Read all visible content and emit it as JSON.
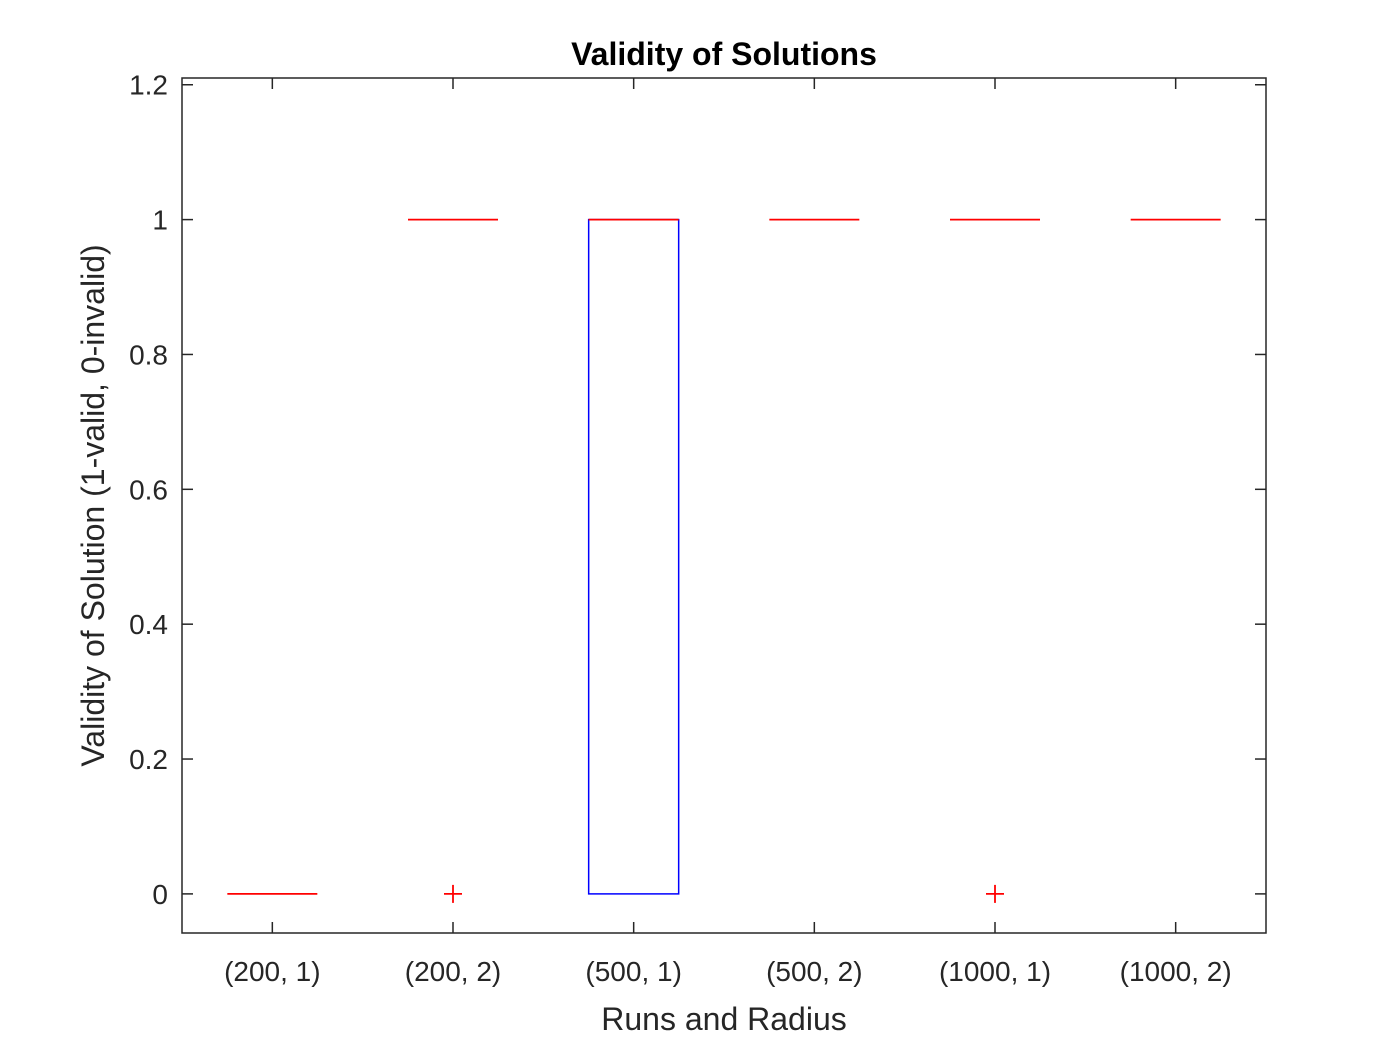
{
  "chart_data": {
    "type": "box",
    "title": "Validity of Solutions",
    "xlabel": "Runs and Radius",
    "ylabel": "Validity of Solution (1-valid, 0-invalid)",
    "ylim": [
      -0.058,
      1.21
    ],
    "yticks": [
      0,
      0.2,
      0.4,
      0.6,
      0.8,
      1,
      1.2
    ],
    "ytick_labels": [
      "0",
      "0.2",
      "0.4",
      "0.6",
      "0.8",
      "1",
      "1.2"
    ],
    "categories": [
      "(200, 1)",
      "(200, 2)",
      "(500, 1)",
      "(500, 2)",
      "(1000, 1)",
      "(1000, 2)"
    ],
    "boxes": [
      {
        "category": "(200, 1)",
        "q1": 0,
        "median": 0,
        "q3": 0,
        "outliers": []
      },
      {
        "category": "(200, 2)",
        "q1": 1,
        "median": 1,
        "q3": 1,
        "outliers": [
          0
        ]
      },
      {
        "category": "(500, 1)",
        "q1": 0,
        "median": 1,
        "q3": 1,
        "outliers": []
      },
      {
        "category": "(500, 2)",
        "q1": 1,
        "median": 1,
        "q3": 1,
        "outliers": []
      },
      {
        "category": "(1000, 1)",
        "q1": 1,
        "median": 1,
        "q3": 1,
        "outliers": [
          0
        ]
      },
      {
        "category": "(1000, 2)",
        "q1": 1,
        "median": 1,
        "q3": 1,
        "outliers": []
      }
    ],
    "colors": {
      "box": "#0000ff",
      "median": "#ff0000",
      "outlier": "#ff0000",
      "axes": "#262626"
    },
    "grid": false,
    "legend": "none"
  }
}
